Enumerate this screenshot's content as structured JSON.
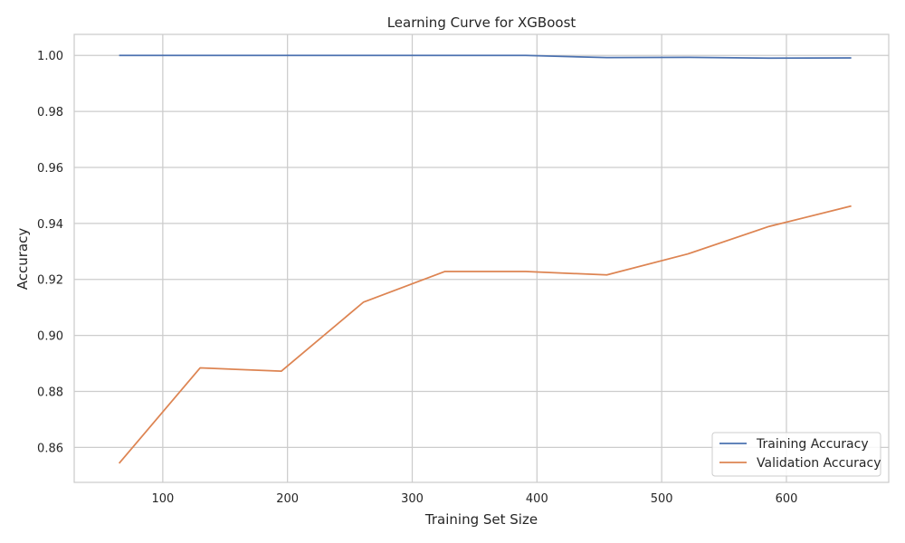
{
  "chart_data": {
    "type": "line",
    "title": "Learning Curve for XGBoost",
    "xlabel": "Training Set Size",
    "ylabel": "Accuracy",
    "xlim": [
      29,
      682
    ],
    "ylim": [
      0.8475,
      1.0075
    ],
    "xticks": [
      100,
      200,
      300,
      400,
      500,
      600
    ],
    "yticks": [
      0.86,
      0.88,
      0.9,
      0.92,
      0.94,
      0.96,
      0.98,
      1.0
    ],
    "xtick_labels": [
      "100",
      "200",
      "300",
      "400",
      "500",
      "600"
    ],
    "ytick_labels": [
      "0.86",
      "0.88",
      "0.90",
      "0.92",
      "0.94",
      "0.96",
      "0.98",
      "1.00"
    ],
    "grid": true,
    "legend_position": "lower-right",
    "x": [
      65,
      130,
      195,
      261,
      326,
      391,
      456,
      521,
      586,
      652
    ],
    "series": [
      {
        "name": "Training Accuracy",
        "color": "#4c72b0",
        "values": [
          1.0,
          1.0,
          1.0,
          1.0,
          1.0,
          1.0,
          0.9992,
          0.9993,
          0.999,
          0.9991
        ]
      },
      {
        "name": "Validation Accuracy",
        "color": "#dd8452",
        "values": [
          0.8543,
          0.8884,
          0.8872,
          0.9119,
          0.9228,
          0.9228,
          0.9216,
          0.9291,
          0.9389,
          0.9462
        ]
      }
    ]
  }
}
